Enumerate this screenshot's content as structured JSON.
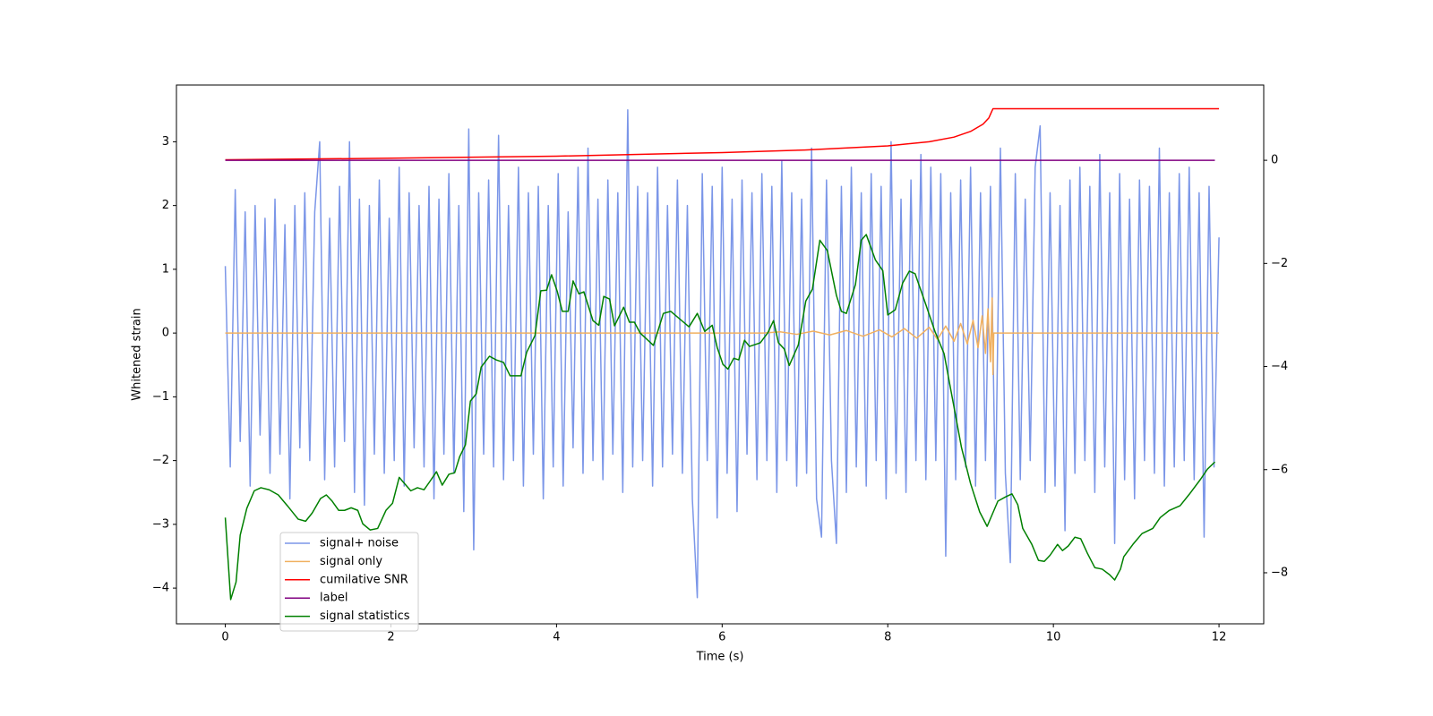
{
  "chart_data": {
    "type": "line",
    "xlabel": "Time (s)",
    "ylabel": "Whitened strain",
    "xlim": [
      -0.59,
      12.54
    ],
    "ylim": [
      -4.56,
      3.89
    ],
    "y2lim": [
      -8.99,
      1.46
    ],
    "xticks": [
      0,
      2,
      4,
      6,
      8,
      10,
      12
    ],
    "yticks": [
      {
        "value": -4,
        "label": "−4"
      },
      {
        "value": -3,
        "label": "−3"
      },
      {
        "value": -2,
        "label": "−2"
      },
      {
        "value": -1,
        "label": "−1"
      },
      0,
      1,
      2,
      3
    ],
    "y2ticks": [
      {
        "value": -8,
        "label": "−8"
      },
      {
        "value": -6,
        "label": "−6"
      },
      {
        "value": -4,
        "label": "−4"
      },
      {
        "value": -2,
        "label": "−2"
      },
      0
    ],
    "legend": "lower left",
    "series": [
      {
        "name": "signal+ noise",
        "color": "#7b96e8",
        "axis": "y",
        "x": [
          0,
          0.06,
          0.12,
          0.18,
          0.24,
          0.3,
          0.36,
          0.42,
          0.48,
          0.54,
          0.6,
          0.66,
          0.72,
          0.78,
          0.84,
          0.9,
          0.96,
          1.02,
          1.08,
          1.14,
          1.2,
          1.26,
          1.32,
          1.38,
          1.44,
          1.5,
          1.56,
          1.62,
          1.68,
          1.74,
          1.8,
          1.86,
          1.92,
          1.98,
          2.04,
          2.1,
          2.16,
          2.22,
          2.28,
          2.34,
          2.4,
          2.46,
          2.52,
          2.58,
          2.64,
          2.7,
          2.76,
          2.82,
          2.88,
          2.94,
          3,
          3.06,
          3.12,
          3.18,
          3.24,
          3.3,
          3.36,
          3.42,
          3.48,
          3.54,
          3.6,
          3.66,
          3.72,
          3.78,
          3.84,
          3.9,
          3.96,
          4.02,
          4.08,
          4.14,
          4.2,
          4.26,
          4.32,
          4.38,
          4.44,
          4.5,
          4.56,
          4.62,
          4.68,
          4.74,
          4.8,
          4.86,
          4.92,
          4.98,
          5.04,
          5.1,
          5.16,
          5.22,
          5.28,
          5.34,
          5.4,
          5.46,
          5.52,
          5.58,
          5.64,
          5.7,
          5.76,
          5.82,
          5.88,
          5.94,
          6,
          6.06,
          6.12,
          6.18,
          6.24,
          6.3,
          6.36,
          6.42,
          6.48,
          6.54,
          6.6,
          6.66,
          6.72,
          6.78,
          6.84,
          6.9,
          6.96,
          7.02,
          7.08,
          7.14,
          7.2,
          7.26,
          7.32,
          7.38,
          7.44,
          7.5,
          7.56,
          7.62,
          7.68,
          7.74,
          7.8,
          7.86,
          7.92,
          7.98,
          8.04,
          8.1,
          8.16,
          8.22,
          8.28,
          8.34,
          8.4,
          8.46,
          8.52,
          8.58,
          8.64,
          8.7,
          8.76,
          8.82,
          8.88,
          8.94,
          9,
          9.06,
          9.12,
          9.18,
          9.24,
          9.3,
          9.36,
          9.42,
          9.48,
          9.54,
          9.6,
          9.66,
          9.72,
          9.78,
          9.84,
          9.9,
          9.96,
          10.02,
          10.08,
          10.14,
          10.2,
          10.26,
          10.32,
          10.38,
          10.44,
          10.5,
          10.56,
          10.62,
          10.68,
          10.74,
          10.8,
          10.86,
          10.92,
          10.98,
          11.04,
          11.1,
          11.16,
          11.22,
          11.28,
          11.34,
          11.4,
          11.46,
          11.52,
          11.58,
          11.64,
          11.7,
          11.76,
          11.82,
          11.88,
          11.94,
          12
        ],
        "values": [
          1.05,
          -2.1,
          2.25,
          -1.7,
          1.9,
          -2.4,
          2.0,
          -1.6,
          1.8,
          -2.2,
          2.1,
          -1.9,
          1.7,
          -2.6,
          2.0,
          -1.8,
          2.2,
          -2.0,
          1.9,
          3.0,
          -2.3,
          1.8,
          -2.1,
          2.3,
          -1.7,
          3.0,
          -2.5,
          2.1,
          -2.7,
          2.0,
          -1.9,
          2.4,
          -2.2,
          1.8,
          -2.0,
          2.6,
          -2.4,
          2.2,
          -1.8,
          2.0,
          -2.1,
          2.3,
          -2.6,
          2.1,
          -1.9,
          2.5,
          -2.2,
          2.0,
          -2.8,
          3.2,
          -3.4,
          2.2,
          -1.9,
          2.4,
          -2.1,
          3.1,
          -2.3,
          2.0,
          -2.0,
          2.6,
          -2.4,
          2.2,
          -1.9,
          2.3,
          -2.6,
          2.0,
          -2.1,
          2.5,
          -2.4,
          1.9,
          -1.8,
          2.6,
          -2.2,
          2.9,
          -2.0,
          2.1,
          -2.3,
          2.4,
          -1.9,
          2.2,
          -2.5,
          3.5,
          -2.1,
          2.3,
          -2.0,
          2.2,
          -2.4,
          2.6,
          -2.1,
          2.0,
          -1.9,
          2.4,
          -2.2,
          2.0,
          -2.6,
          -4.15,
          2.5,
          -2.0,
          2.3,
          -2.9,
          2.6,
          -2.2,
          2.1,
          -2.8,
          2.4,
          -1.9,
          2.2,
          -2.3,
          2.5,
          -2.0,
          2.3,
          -2.5,
          2.7,
          -2.0,
          2.2,
          -2.4,
          2.1,
          -2.2,
          2.9,
          -2.6,
          -3.2,
          2.4,
          -2.0,
          -3.3,
          2.3,
          -2.5,
          2.6,
          -2.1,
          2.2,
          -2.4,
          2.5,
          -2.0,
          2.3,
          -2.6,
          3.0,
          -2.2,
          2.1,
          -2.5,
          2.4,
          -2.0,
          2.8,
          -2.3,
          2.6,
          -2.0,
          2.5,
          -3.5,
          2.2,
          -2.3,
          2.4,
          -2.1,
          2.6,
          -2.4,
          2.2,
          -2.0,
          2.3,
          -2.6,
          2.9,
          -2.2,
          -3.6,
          2.5,
          -2.3,
          2.1,
          -2.0,
          2.6,
          3.25,
          -2.5,
          2.2,
          -2.4,
          2.0,
          -3.1,
          2.4,
          -2.2,
          2.6,
          -2.0,
          2.3,
          -2.5,
          2.8,
          -2.1,
          2.2,
          -3.3,
          2.5,
          -2.3,
          2.1,
          -2.6,
          2.4,
          -2.0,
          2.3,
          -2.2,
          2.9,
          -2.4,
          2.2,
          -2.1,
          2.5,
          -2.0,
          2.6,
          -2.3,
          2.2,
          -3.2,
          2.3,
          -2.1,
          1.5
        ]
      },
      {
        "name": "signal only",
        "color": "#f0b060",
        "axis": "y",
        "x": [
          0,
          6.5,
          6.7,
          6.9,
          7.1,
          7.3,
          7.5,
          7.7,
          7.9,
          8.05,
          8.2,
          8.35,
          8.5,
          8.6,
          8.7,
          8.8,
          8.88,
          8.96,
          9.03,
          9.09,
          9.14,
          9.18,
          9.21,
          9.24,
          9.26,
          9.27,
          9.28,
          12
        ],
        "values": [
          0,
          0,
          0.02,
          -0.02,
          0.03,
          -0.03,
          0.04,
          -0.05,
          0.05,
          -0.06,
          0.07,
          -0.08,
          0.09,
          -0.1,
          0.11,
          -0.13,
          0.15,
          -0.17,
          0.2,
          -0.23,
          0.27,
          -0.32,
          0.38,
          -0.45,
          0.55,
          -0.65,
          0,
          0
        ]
      },
      {
        "name": "cumilative SNR",
        "color": "#ff0000",
        "axis": "y2",
        "x": [
          0,
          2,
          4,
          6,
          7,
          8,
          8.5,
          8.8,
          9,
          9.15,
          9.22,
          9.27,
          12
        ],
        "values": [
          0.01,
          0.04,
          0.08,
          0.15,
          0.2,
          0.28,
          0.36,
          0.45,
          0.56,
          0.7,
          0.82,
          1.0,
          1.0
        ]
      },
      {
        "name": "label",
        "color": "#800080",
        "axis": "y2",
        "x": [
          0,
          11.95
        ],
        "values": [
          0,
          0
        ]
      },
      {
        "name": "signal statistics",
        "color": "#008000",
        "axis": "y2",
        "x": [
          0,
          0.065,
          0.13,
          0.18,
          0.26,
          0.35,
          0.43,
          0.53,
          0.64,
          0.75,
          0.88,
          0.97,
          1.05,
          1.15,
          1.22,
          1.29,
          1.37,
          1.44,
          1.52,
          1.6,
          1.66,
          1.75,
          1.84,
          1.94,
          2.02,
          2.1,
          2.24,
          2.32,
          2.4,
          2.47,
          2.55,
          2.62,
          2.7,
          2.77,
          2.83,
          2.9,
          2.96,
          3.03,
          3.09,
          3.19,
          3.27,
          3.36,
          3.44,
          3.57,
          3.64,
          3.74,
          3.81,
          3.88,
          3.94,
          4.01,
          4.07,
          4.14,
          4.2,
          4.27,
          4.33,
          4.44,
          4.51,
          4.57,
          4.64,
          4.7,
          4.81,
          4.88,
          4.94,
          5.01,
          5.17,
          5.29,
          5.38,
          5.6,
          5.7,
          5.79,
          5.88,
          5.94,
          6.01,
          6.07,
          6.14,
          6.2,
          6.27,
          6.33,
          6.46,
          6.55,
          6.62,
          6.68,
          6.75,
          6.81,
          6.92,
          7.01,
          7.09,
          7.18,
          7.27,
          7.38,
          7.44,
          7.5,
          7.61,
          7.68,
          7.74,
          7.85,
          7.94,
          8,
          8.09,
          8.18,
          8.26,
          8.33,
          8.46,
          8.57,
          8.68,
          8.79,
          8.89,
          9,
          9.11,
          9.2,
          9.33,
          9.42,
          9.5,
          9.57,
          9.63,
          9.74,
          9.82,
          9.89,
          9.96,
          10.05,
          10.11,
          10.18,
          10.26,
          10.33,
          10.41,
          10.5,
          10.59,
          10.68,
          10.74,
          10.81,
          10.85,
          10.96,
          11.07,
          11.2,
          11.29,
          11.4,
          11.53,
          11.64,
          11.78,
          11.86,
          11.95
        ],
        "values": [
          -6.93,
          -8.52,
          -8.18,
          -7.27,
          -6.75,
          -6.41,
          -6.35,
          -6.39,
          -6.49,
          -6.7,
          -6.96,
          -7.0,
          -6.84,
          -6.56,
          -6.49,
          -6.61,
          -6.79,
          -6.79,
          -6.74,
          -6.79,
          -7.05,
          -7.17,
          -7.14,
          -6.79,
          -6.65,
          -6.15,
          -6.41,
          -6.35,
          -6.39,
          -6.23,
          -6.04,
          -6.3,
          -6.09,
          -6.06,
          -5.75,
          -5.52,
          -4.67,
          -4.53,
          -4.01,
          -3.8,
          -3.87,
          -3.92,
          -4.18,
          -4.18,
          -3.72,
          -3.4,
          -2.53,
          -2.52,
          -2.22,
          -2.55,
          -2.93,
          -2.93,
          -2.34,
          -2.59,
          -2.55,
          -3.11,
          -3.2,
          -2.64,
          -2.69,
          -3.21,
          -2.85,
          -3.14,
          -3.14,
          -3.35,
          -3.59,
          -2.97,
          -2.93,
          -3.23,
          -2.97,
          -3.32,
          -3.2,
          -3.63,
          -3.96,
          -4.05,
          -3.84,
          -3.87,
          -3.49,
          -3.61,
          -3.54,
          -3.35,
          -3.11,
          -3.54,
          -3.66,
          -3.98,
          -3.58,
          -2.73,
          -2.5,
          -1.55,
          -1.75,
          -2.62,
          -2.93,
          -2.97,
          -2.41,
          -1.55,
          -1.44,
          -1.93,
          -2.14,
          -3.0,
          -2.9,
          -2.38,
          -2.15,
          -2.2,
          -2.8,
          -3.32,
          -3.75,
          -4.7,
          -5.57,
          -6.27,
          -6.82,
          -7.1,
          -6.61,
          -6.53,
          -6.47,
          -6.68,
          -7.14,
          -7.45,
          -7.76,
          -7.78,
          -7.66,
          -7.45,
          -7.57,
          -7.48,
          -7.31,
          -7.34,
          -7.62,
          -7.9,
          -7.93,
          -8.04,
          -8.14,
          -7.93,
          -7.69,
          -7.45,
          -7.24,
          -7.14,
          -6.93,
          -6.79,
          -6.7,
          -6.48,
          -6.18,
          -5.99,
          -5.85
        ]
      }
    ]
  }
}
